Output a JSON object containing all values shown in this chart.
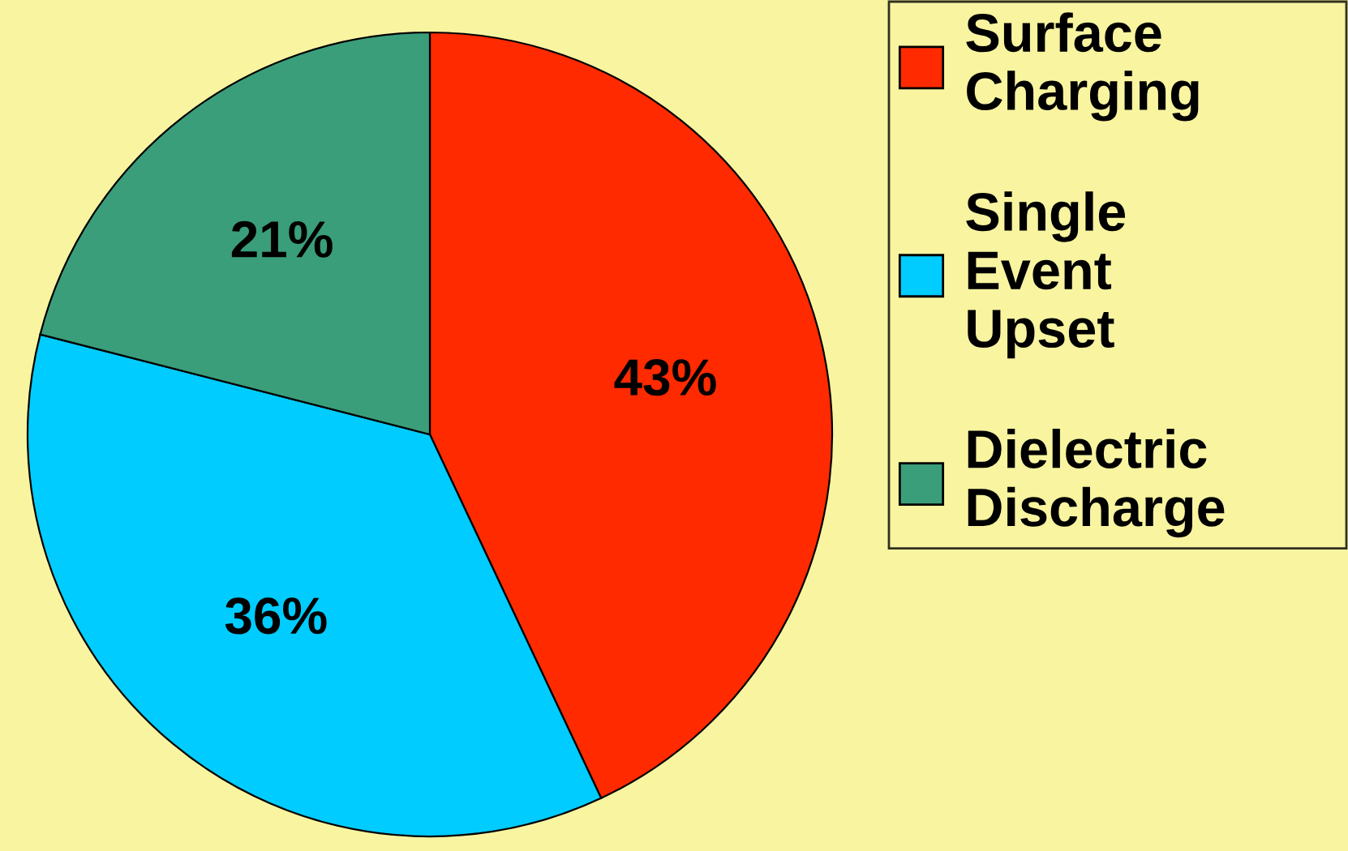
{
  "chart_data": {
    "type": "pie",
    "categories": [
      "Surface Charging",
      "Single Event Upset",
      "Dielectric Discharge"
    ],
    "values": [
      43,
      36,
      21
    ],
    "colors": [
      "#ff2a00",
      "#00ccff",
      "#3a9e7a"
    ],
    "value_labels": [
      "43%",
      "36%",
      "21%"
    ],
    "legend": "right"
  }
}
